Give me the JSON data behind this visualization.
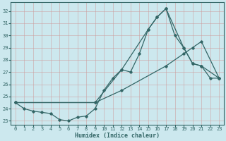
{
  "xlabel": "Humidex (Indice chaleur)",
  "bg_color": "#cce8ee",
  "grid_color": "#dddddd",
  "line_color": "#336666",
  "xlim": [
    -0.5,
    23.5
  ],
  "ylim": [
    22.7,
    32.7
  ],
  "yticks": [
    23,
    24,
    25,
    26,
    27,
    28,
    29,
    30,
    31,
    32
  ],
  "xticks": [
    0,
    1,
    2,
    3,
    4,
    5,
    6,
    7,
    8,
    9,
    10,
    11,
    12,
    13,
    14,
    15,
    16,
    17,
    18,
    19,
    20,
    21,
    22,
    23
  ],
  "line1_x": [
    0,
    1,
    2,
    3,
    4,
    5,
    6,
    7,
    8,
    9,
    10,
    11,
    12,
    13,
    14,
    15,
    16,
    17,
    18,
    19,
    20,
    21,
    22,
    23
  ],
  "line1_y": [
    24.5,
    24.0,
    23.8,
    23.7,
    23.6,
    23.1,
    23.0,
    23.3,
    23.4,
    24.0,
    25.5,
    26.5,
    27.2,
    27.0,
    28.5,
    30.5,
    31.5,
    32.2,
    30.0,
    29.0,
    27.7,
    27.5,
    26.5,
    26.5
  ],
  "line2_x": [
    0,
    9,
    12,
    15,
    16,
    17,
    19,
    20,
    21,
    23
  ],
  "line2_y": [
    24.5,
    24.5,
    27.2,
    30.5,
    31.5,
    32.2,
    29.0,
    27.7,
    27.5,
    26.5
  ],
  "line3_x": [
    0,
    9,
    12,
    17,
    19,
    20,
    21,
    23
  ],
  "line3_y": [
    24.5,
    24.5,
    25.5,
    27.5,
    28.5,
    29.0,
    29.5,
    26.5
  ]
}
